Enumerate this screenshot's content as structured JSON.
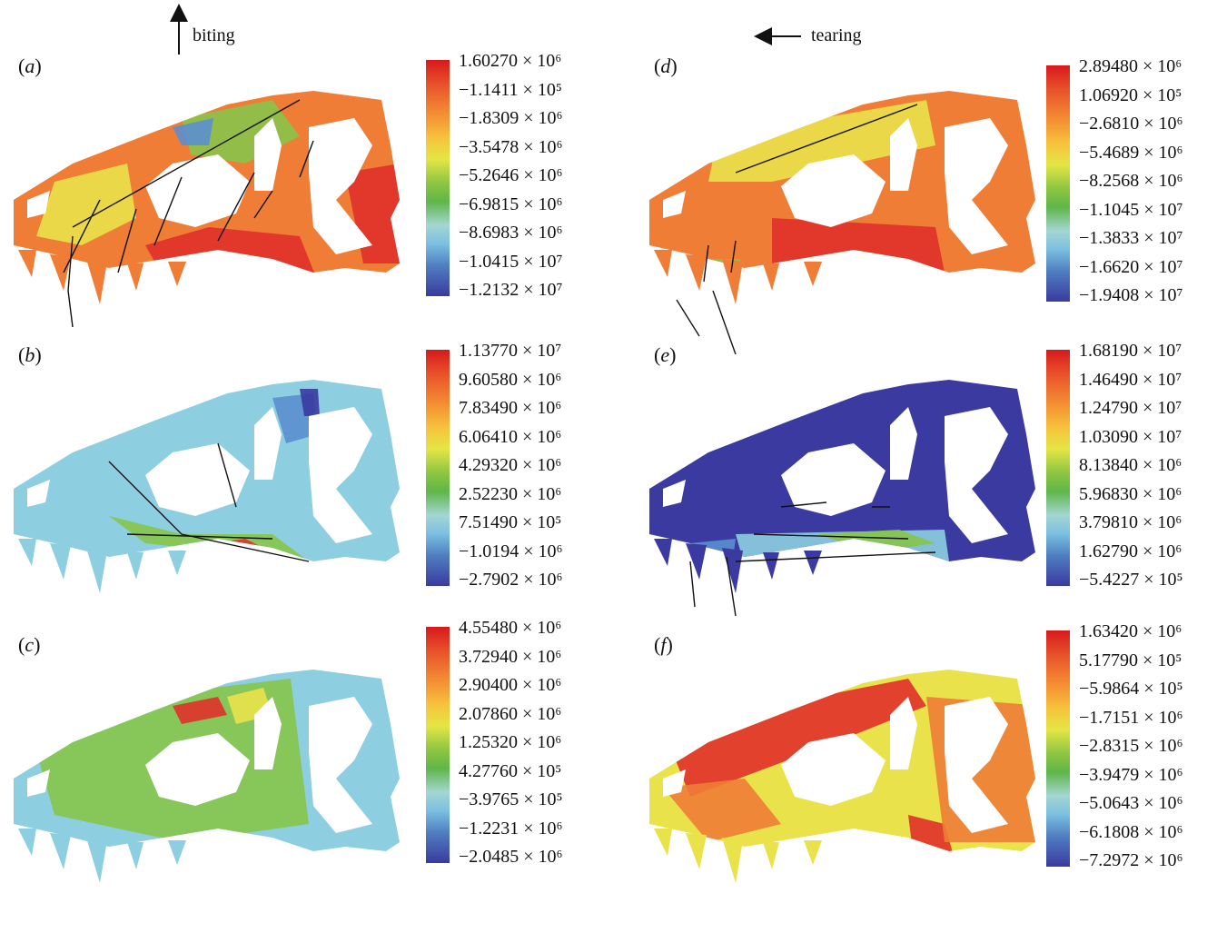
{
  "header": {
    "left_note": "biting",
    "right_note": "tearing"
  },
  "panels": [
    {
      "id": "a",
      "label_open": "(",
      "label_letter": "a",
      "label_close": ")",
      "ticks": [
        "1.60270 × 10⁶",
        "−1.1411 × 10⁵",
        "−1.8309 × 10⁶",
        "−3.5478 × 10⁶",
        "−5.2646 × 10⁶",
        "−6.9815 × 10⁶",
        "−8.6983 × 10⁶",
        "−1.0415 × 10⁷",
        "−1.2132 × 10⁷"
      ]
    },
    {
      "id": "b",
      "label_open": "(",
      "label_letter": "b",
      "label_close": ")",
      "ticks": [
        "1.13770 × 10⁷",
        "9.60580 × 10⁶",
        "7.83490 × 10⁶",
        "6.06410 × 10⁶",
        "4.29320 × 10⁶",
        "2.52230 × 10⁶",
        "7.51490 × 10⁵",
        "−1.0194 × 10⁶",
        "−2.7902 × 10⁶"
      ]
    },
    {
      "id": "c",
      "label_open": "(",
      "label_letter": "c",
      "label_close": ")",
      "ticks": [
        "4.55480 × 10⁶",
        "3.72940 × 10⁶",
        "2.90400 × 10⁶",
        "2.07860 × 10⁶",
        "1.25320 × 10⁶",
        "4.27760 × 10⁵",
        "−3.9765 × 10⁵",
        "−1.2231 × 10⁶",
        "−2.0485 × 10⁶"
      ]
    },
    {
      "id": "d",
      "label_open": "(",
      "label_letter": "d",
      "label_close": ")",
      "ticks": [
        "2.89480 × 10⁶",
        "1.06920 × 10⁵",
        "−2.6810 × 10⁶",
        "−5.4689 × 10⁶",
        "−8.2568 × 10⁶",
        "−1.1045 × 10⁷",
        "−1.3833 × 10⁷",
        "−1.6620 × 10⁷",
        "−1.9408 × 10⁷"
      ]
    },
    {
      "id": "e",
      "label_open": "(",
      "label_letter": "e",
      "label_close": ")",
      "ticks": [
        "1.68190 × 10⁷",
        "1.46490 × 10⁷",
        "1.24790 × 10⁷",
        "1.03090 × 10⁷",
        "8.13840 × 10⁶",
        "5.96830 × 10⁶",
        "3.79810 × 10⁶",
        "1.62790 × 10⁶",
        "−5.4227 × 10⁵"
      ]
    },
    {
      "id": "f",
      "label_open": "(",
      "label_letter": "f",
      "label_close": ")",
      "ticks": [
        "1.63420 × 10⁶",
        "5.17790 × 10⁵",
        "−5.9864 × 10⁵",
        "−1.7151 × 10⁶",
        "−2.8315 × 10⁶",
        "−3.9479 × 10⁶",
        "−5.0643 × 10⁶",
        "−6.1808 × 10⁶",
        "−7.2972 × 10⁶"
      ]
    }
  ],
  "palette": {
    "red": "#e0302a",
    "orange": "#ef7d36",
    "yellow": "#e9e24a",
    "green": "#86c44a",
    "lightblue": "#8dcfe0",
    "blue": "#5a8fd0",
    "navy": "#3a3aa0"
  }
}
